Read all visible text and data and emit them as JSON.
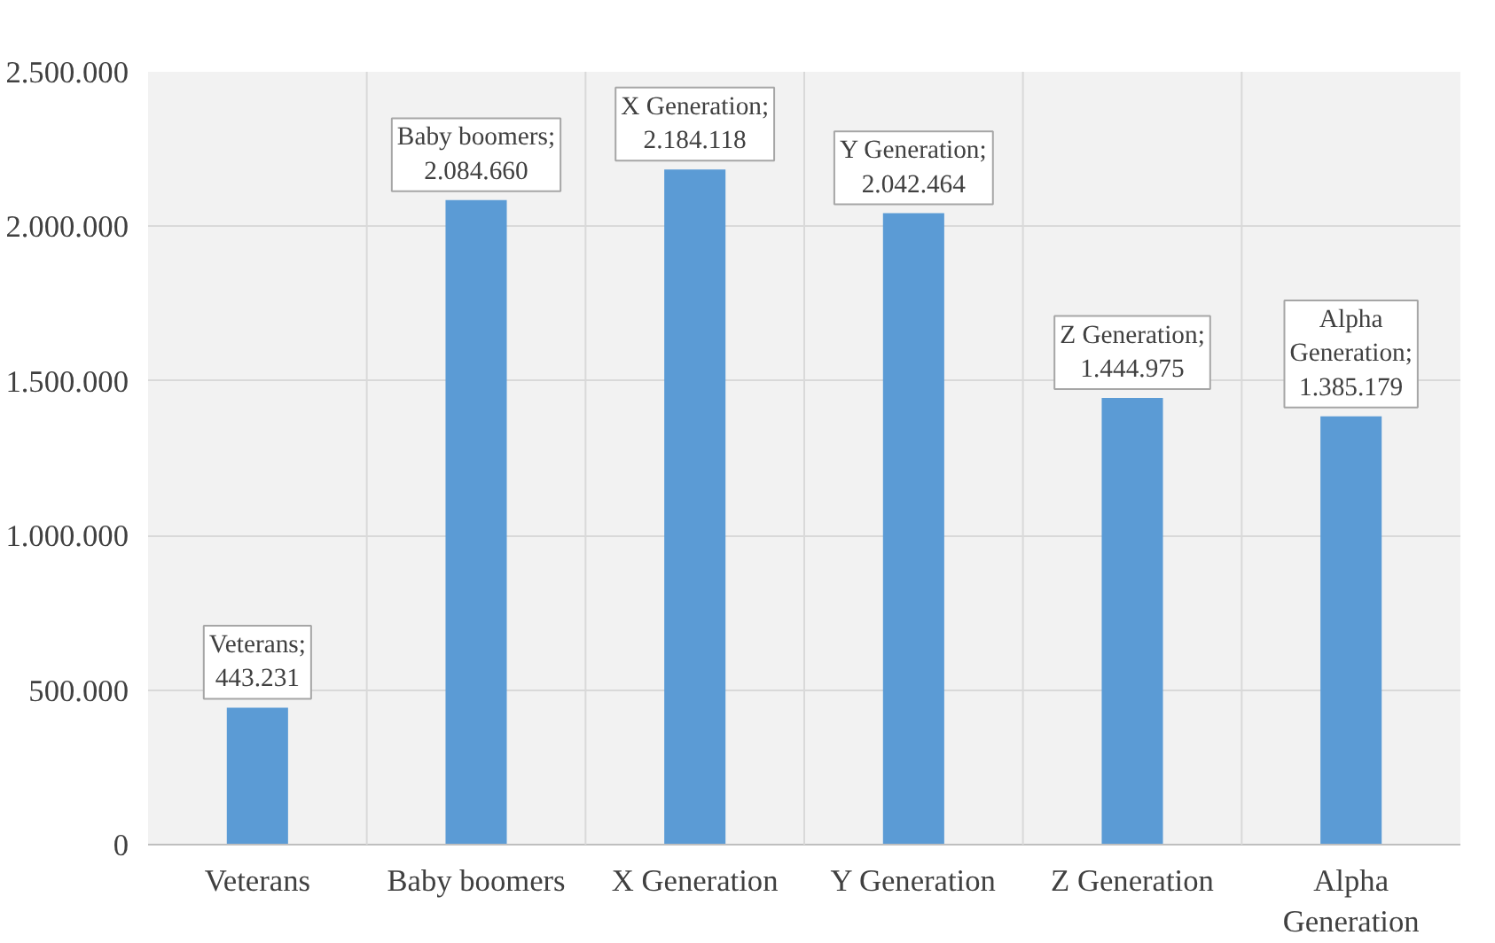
{
  "chart_data": {
    "type": "bar",
    "categories": [
      "Veterans",
      "Baby boomers",
      "X Generation",
      "Y Generation",
      "Z Generation",
      "Alpha Generation"
    ],
    "values": [
      443231,
      2084660,
      2184118,
      2042464,
      1444975,
      1385179
    ],
    "value_labels": [
      "Veterans;\n443.231",
      "Baby boomers;\n2.084.660",
      "X Generation;\n2.184.118",
      "Y Generation;\n2.042.464",
      "Z Generation;\n1.444.975",
      "Alpha\nGeneration;\n1.385.179"
    ],
    "color": "#5b9bd5",
    "ylim": [
      0,
      2500000
    ],
    "yticks": [
      {
        "value": 0,
        "label": "0"
      },
      {
        "value": 500000,
        "label": "500.000"
      },
      {
        "value": 1000000,
        "label": "1.000.000"
      },
      {
        "value": 1500000,
        "label": "1.500.000"
      },
      {
        "value": 2000000,
        "label": "2.000.000"
      },
      {
        "value": 2500000,
        "label": "2.500.000"
      }
    ],
    "grid": true
  }
}
